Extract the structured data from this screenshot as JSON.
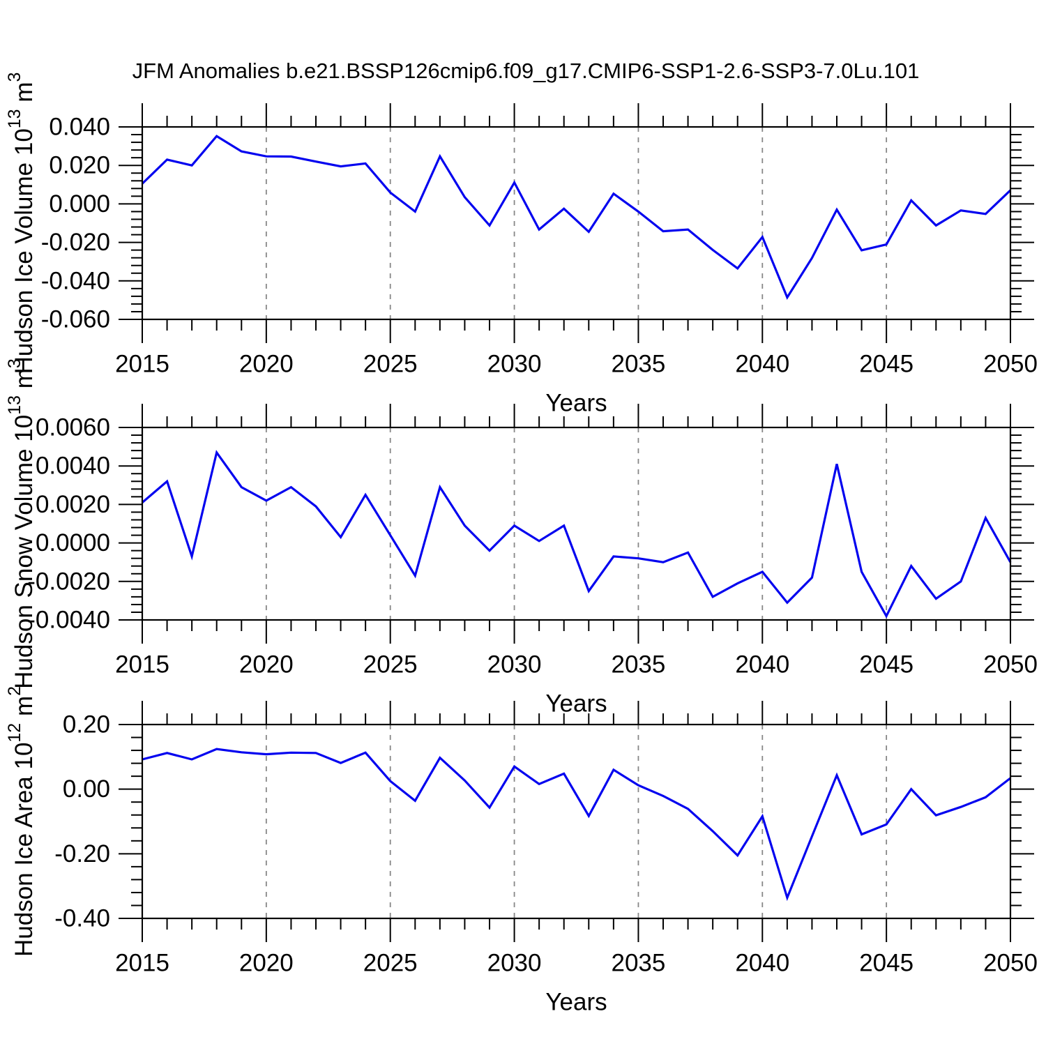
{
  "title": "JFM Anomalies b.e21.BSSP126cmip6.f09_g17.CMIP6-SSP1-2.6-SSP3-7.0Lu.101",
  "colors": {
    "line": "#0404ef",
    "frame": "#000000",
    "grid": "#878787",
    "text": "#000000",
    "background": "#ffffff"
  },
  "chart_data": {
    "type": "line",
    "title": "JFM Anomalies b.e21.BSSP126cmip6.f09_g17.CMIP6-SSP1-2.6-SSP3-7.0Lu.101",
    "xlabel": "Years",
    "legend_position": "none",
    "grid": "vertical-dashed",
    "grid_x": [
      2020,
      2025,
      2030,
      2035,
      2040,
      2045
    ],
    "x_major_ticks": [
      2015,
      2020,
      2025,
      2030,
      2035,
      2040,
      2045,
      2050
    ],
    "x_major_tick_labels": [
      "2015",
      "2020",
      "2025",
      "2030",
      "2035",
      "2040",
      "2045",
      "2050"
    ],
    "x_minor_step": 1,
    "xlim": [
      2015,
      2050
    ],
    "x": [
      2015,
      2016,
      2017,
      2018,
      2019,
      2020,
      2021,
      2022,
      2023,
      2024,
      2025,
      2026,
      2027,
      2028,
      2029,
      2030,
      2031,
      2032,
      2033,
      2034,
      2035,
      2036,
      2037,
      2038,
      2039,
      2040,
      2041,
      2042,
      2043,
      2044,
      2045,
      2046,
      2047,
      2048,
      2049,
      2050
    ],
    "panels": [
      {
        "name": "hudson-ice-volume",
        "ylabel": "Hudson Ice Volume 10^13 m^3",
        "ylabel_parts": [
          {
            "t": "Hudson Ice Volume 10"
          },
          {
            "t": "13",
            "sup": true
          },
          {
            "t": " m"
          },
          {
            "t": "3",
            "sup": true
          }
        ],
        "ylim": [
          -0.06,
          0.04
        ],
        "ytick_values": [
          0.04,
          0.02,
          0.0,
          -0.02,
          -0.04,
          -0.06
        ],
        "ytick_labels": [
          "0.040",
          "0.020",
          "0.000",
          "-0.020",
          "-0.040",
          "-0.060"
        ],
        "y_minor_step": 0.004,
        "series": [
          {
            "name": "Hudson Ice Volume anomaly",
            "values": [
              0.0105,
              0.023,
              0.02,
              0.0352,
              0.0273,
              0.0247,
              0.0246,
              0.022,
              0.0195,
              0.021,
              0.0059,
              -0.004,
              0.0247,
              0.0035,
              -0.0112,
              0.0111,
              -0.0133,
              -0.0025,
              -0.0145,
              0.0053,
              -0.004,
              -0.0142,
              -0.0133,
              -0.0239,
              -0.0335,
              -0.0172,
              -0.0486,
              -0.0281,
              -0.003,
              -0.0241,
              -0.0211,
              0.0018,
              -0.0112,
              -0.0034,
              -0.0052,
              0.0071
            ]
          }
        ]
      },
      {
        "name": "hudson-snow-volume",
        "ylabel": "Hudson Snow Volume 10^13 m^3",
        "ylabel_parts": [
          {
            "t": "Hudson Snow Volume 10"
          },
          {
            "t": "13",
            "sup": true
          },
          {
            "t": " m"
          },
          {
            "t": "3",
            "sup": true
          }
        ],
        "ylim": [
          -0.004,
          0.006
        ],
        "ytick_values": [
          0.006,
          0.004,
          0.002,
          0.0,
          -0.002,
          -0.004
        ],
        "ytick_labels": [
          "0.0060",
          "0.0040",
          "0.0020",
          "0.0000",
          "-0.0020",
          "-0.0040"
        ],
        "y_minor_step": 0.0004,
        "series": [
          {
            "name": "Hudson Snow Volume anomaly",
            "values": [
              0.0021,
              0.0032,
              -0.0007,
              0.0047,
              0.0029,
              0.0022,
              0.0029,
              0.0019,
              0.0003,
              0.0025,
              0.0004,
              -0.0017,
              0.0029,
              0.0009,
              -0.0004,
              0.0009,
              0.0001,
              0.0009,
              -0.0025,
              -0.0007,
              -0.0008,
              -0.001,
              -0.0005,
              -0.0028,
              -0.0021,
              -0.0015,
              -0.0031,
              -0.0018,
              0.0041,
              -0.0015,
              -0.0038,
              -0.0012,
              -0.0029,
              -0.002,
              0.0013,
              -0.001
            ]
          }
        ]
      },
      {
        "name": "hudson-ice-area",
        "ylabel": "Hudson Ice Area 10^12 m^2",
        "ylabel_parts": [
          {
            "t": "Hudson Ice Area 10"
          },
          {
            "t": "12",
            "sup": true
          },
          {
            "t": " m"
          },
          {
            "t": "2",
            "sup": true
          }
        ],
        "ylim": [
          -0.4,
          0.2
        ],
        "ytick_values": [
          0.2,
          0.0,
          -0.2,
          -0.4
        ],
        "ytick_labels": [
          "0.20",
          "0.00",
          "-0.20",
          "-0.40"
        ],
        "y_minor_step": 0.04,
        "series": [
          {
            "name": "Hudson Ice Area anomaly",
            "values": [
              0.092,
              0.112,
              0.092,
              0.124,
              0.114,
              0.108,
              0.113,
              0.112,
              0.081,
              0.113,
              0.025,
              -0.036,
              0.097,
              0.027,
              -0.057,
              0.07,
              0.016,
              0.048,
              -0.083,
              0.06,
              0.012,
              -0.021,
              -0.061,
              -0.13,
              -0.205,
              -0.084,
              -0.336,
              -0.146,
              0.043,
              -0.14,
              -0.109,
              0.0,
              -0.081,
              -0.055,
              -0.025,
              0.034
            ]
          }
        ]
      }
    ]
  }
}
